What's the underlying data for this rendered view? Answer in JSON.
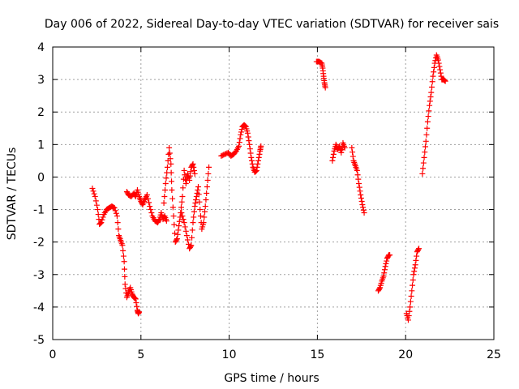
{
  "chart_data": {
    "type": "scatter",
    "title": "Day 006 of 2022, Sidereal Day-to-day VTEC variation (SDTVAR) for receiver sais",
    "xlabel": "GPS time / hours",
    "ylabel": "SDTVAR / TECUs",
    "xlim": [
      0,
      25
    ],
    "ylim": [
      -5,
      4
    ],
    "xticks": [
      "0",
      "5",
      "10",
      "15",
      "20",
      "25"
    ],
    "yticks": [
      "-5",
      "-4",
      "-3",
      "-2",
      "-1",
      "0",
      "1",
      "2",
      "3",
      "4"
    ],
    "grid": true,
    "marker": "plus",
    "color": "#ff0000",
    "segments": [
      {
        "name": "seg-a",
        "points": [
          [
            2.25,
            -0.35
          ],
          [
            2.4,
            -0.6
          ],
          [
            2.55,
            -1.0
          ],
          [
            2.65,
            -1.45
          ],
          [
            2.75,
            -1.4
          ],
          [
            2.9,
            -1.15
          ],
          [
            3.05,
            -1.0
          ],
          [
            3.2,
            -0.95
          ],
          [
            3.35,
            -0.9
          ],
          [
            3.5,
            -0.95
          ],
          [
            3.65,
            -1.2
          ],
          [
            3.75,
            -1.8
          ],
          [
            3.85,
            -1.95
          ],
          [
            3.95,
            -2.1
          ],
          [
            4.05,
            -2.6
          ],
          [
            4.1,
            -3.3
          ],
          [
            4.2,
            -3.7
          ],
          [
            4.3,
            -3.55
          ],
          [
            4.4,
            -3.4
          ],
          [
            4.5,
            -3.6
          ],
          [
            4.6,
            -3.7
          ],
          [
            4.7,
            -3.75
          ],
          [
            4.8,
            -4.1
          ],
          [
            4.85,
            -4.2
          ],
          [
            4.9,
            -4.15
          ]
        ]
      },
      {
        "name": "seg-b",
        "points": [
          [
            4.2,
            -0.45
          ],
          [
            4.3,
            -0.55
          ],
          [
            4.45,
            -0.6
          ],
          [
            4.6,
            -0.5
          ],
          [
            4.7,
            -0.6
          ],
          [
            4.8,
            -0.4
          ],
          [
            4.9,
            -0.6
          ],
          [
            5.0,
            -0.75
          ],
          [
            5.1,
            -0.85
          ],
          [
            5.2,
            -0.7
          ],
          [
            5.35,
            -0.55
          ],
          [
            5.5,
            -0.9
          ],
          [
            5.65,
            -1.2
          ],
          [
            5.8,
            -1.35
          ],
          [
            5.95,
            -1.4
          ],
          [
            6.05,
            -1.3
          ],
          [
            6.15,
            -1.1
          ],
          [
            6.25,
            -1.3
          ],
          [
            6.35,
            -1.2
          ],
          [
            6.45,
            -1.35
          ]
        ]
      },
      {
        "name": "seg-c",
        "points": [
          [
            6.3,
            -0.8
          ],
          [
            6.4,
            -0.2
          ],
          [
            6.5,
            0.3
          ],
          [
            6.6,
            0.9
          ],
          [
            6.7,
            0.4
          ],
          [
            6.75,
            -0.4
          ],
          [
            6.85,
            -1.2
          ],
          [
            6.95,
            -2.0
          ],
          [
            7.05,
            -1.9
          ],
          [
            7.15,
            -1.5
          ],
          [
            7.25,
            -1.1
          ],
          [
            7.35,
            -0.6
          ],
          [
            7.45,
            0.2
          ],
          [
            7.55,
            -0.2
          ],
          [
            7.65,
            0.1
          ],
          [
            7.75,
            -0.1
          ],
          [
            7.85,
            0.3
          ],
          [
            7.95,
            0.4
          ],
          [
            8.05,
            0.1
          ]
        ]
      },
      {
        "name": "seg-d",
        "points": [
          [
            7.3,
            -1.1
          ],
          [
            7.45,
            -1.4
          ],
          [
            7.6,
            -1.8
          ],
          [
            7.75,
            -2.2
          ],
          [
            7.85,
            -2.1
          ],
          [
            7.95,
            -1.4
          ],
          [
            8.05,
            -0.9
          ],
          [
            8.15,
            -0.6
          ],
          [
            8.25,
            -0.3
          ],
          [
            8.35,
            -1.0
          ],
          [
            8.45,
            -1.6
          ],
          [
            8.55,
            -1.4
          ],
          [
            8.65,
            -0.9
          ],
          [
            8.75,
            -0.3
          ],
          [
            8.85,
            0.3
          ]
        ]
      },
      {
        "name": "seg-e",
        "points": [
          [
            9.55,
            0.65
          ],
          [
            9.75,
            0.7
          ],
          [
            9.95,
            0.75
          ],
          [
            10.1,
            0.65
          ],
          [
            10.25,
            0.7
          ],
          [
            10.4,
            0.8
          ],
          [
            10.55,
            0.95
          ],
          [
            10.65,
            1.3
          ],
          [
            10.75,
            1.55
          ],
          [
            10.85,
            1.6
          ],
          [
            10.95,
            1.55
          ],
          [
            11.05,
            1.35
          ],
          [
            11.15,
            1.0
          ],
          [
            11.25,
            0.6
          ],
          [
            11.35,
            0.3
          ],
          [
            11.45,
            0.15
          ],
          [
            11.55,
            0.2
          ],
          [
            11.65,
            0.5
          ],
          [
            11.75,
            0.8
          ],
          [
            11.8,
            0.95
          ]
        ]
      },
      {
        "name": "seg-f",
        "points": [
          [
            14.95,
            3.55
          ],
          [
            15.1,
            3.55
          ],
          [
            15.25,
            3.5
          ],
          [
            15.3,
            3.35
          ],
          [
            15.35,
            3.1
          ],
          [
            15.4,
            2.9
          ],
          [
            15.45,
            2.75
          ]
        ]
      },
      {
        "name": "seg-g",
        "points": [
          [
            15.85,
            0.5
          ],
          [
            15.95,
            0.8
          ],
          [
            16.05,
            1.0
          ],
          [
            16.15,
            0.85
          ],
          [
            16.25,
            0.95
          ],
          [
            16.35,
            0.75
          ],
          [
            16.45,
            1.05
          ],
          [
            16.55,
            0.9
          ]
        ]
      },
      {
        "name": "seg-h",
        "points": [
          [
            16.95,
            0.9
          ],
          [
            17.05,
            0.5
          ],
          [
            17.15,
            0.35
          ],
          [
            17.25,
            0.2
          ],
          [
            17.35,
            -0.2
          ],
          [
            17.45,
            -0.55
          ],
          [
            17.55,
            -0.85
          ],
          [
            17.65,
            -1.1
          ]
        ]
      },
      {
        "name": "seg-i",
        "points": [
          [
            18.45,
            -3.5
          ],
          [
            18.55,
            -3.4
          ],
          [
            18.65,
            -3.2
          ],
          [
            18.75,
            -3.05
          ],
          [
            18.85,
            -2.75
          ],
          [
            18.95,
            -2.5
          ],
          [
            19.05,
            -2.4
          ],
          [
            19.1,
            -2.4
          ]
        ]
      },
      {
        "name": "seg-j",
        "points": [
          [
            20.05,
            -4.2
          ],
          [
            20.15,
            -4.4
          ],
          [
            20.25,
            -4.0
          ],
          [
            20.35,
            -3.5
          ],
          [
            20.45,
            -3.0
          ],
          [
            20.55,
            -2.7
          ],
          [
            20.65,
            -2.3
          ],
          [
            20.75,
            -2.2
          ]
        ]
      },
      {
        "name": "seg-k",
        "points": [
          [
            20.95,
            0.1
          ],
          [
            21.05,
            0.6
          ],
          [
            21.15,
            1.1
          ],
          [
            21.25,
            1.7
          ],
          [
            21.35,
            2.2
          ],
          [
            21.45,
            2.6
          ],
          [
            21.55,
            3.1
          ],
          [
            21.65,
            3.5
          ],
          [
            21.75,
            3.75
          ],
          [
            21.85,
            3.6
          ],
          [
            21.95,
            3.3
          ],
          [
            22.05,
            3.0
          ],
          [
            22.15,
            3.0
          ],
          [
            22.25,
            2.95
          ]
        ]
      }
    ]
  }
}
